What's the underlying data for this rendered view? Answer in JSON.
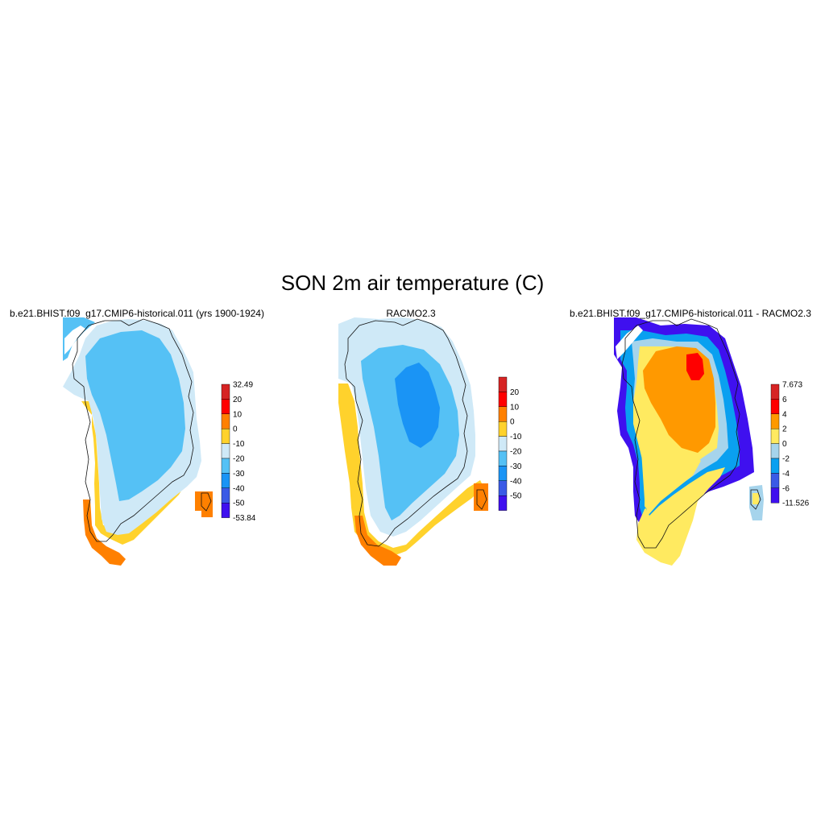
{
  "title": "SON 2m air temperature (C)",
  "panels": [
    {
      "title": "b.e21.BHIST.f09_g17.CMIP6-historical.011 (yrs 1900-1924)",
      "colorbar": {
        "labels": [
          "32.49",
          "20",
          "10",
          "0",
          "-10",
          "-20",
          "-30",
          "-40",
          "-50",
          "-53.84"
        ],
        "colors": [
          "#d62424",
          "#ff0000",
          "#ff8000",
          "#ffd22c",
          "#cfe9f7",
          "#55c1f5",
          "#1a94f5",
          "#3a5ae6",
          "#3f10ef"
        ]
      }
    },
    {
      "title": "RACMO2.3",
      "colorbar": {
        "labels": [
          "20",
          "10",
          "0",
          "-10",
          "-20",
          "-30",
          "-40",
          "-50"
        ],
        "colors": [
          "#d62424",
          "#ff0000",
          "#ff8000",
          "#ffd22c",
          "#cfe9f7",
          "#55c1f5",
          "#1a94f5",
          "#3a5ae6",
          "#3f10ef"
        ]
      }
    },
    {
      "title": "b.e21.BHIST.f09_g17.CMIP6-historical.011 - RACMO2.3",
      "colorbar": {
        "labels": [
          "7.673",
          "6",
          "4",
          "2",
          "0",
          "-2",
          "-4",
          "-6",
          "-11.526"
        ],
        "colors": [
          "#d62424",
          "#ff0000",
          "#ff9900",
          "#ffea60",
          "#a6d4ec",
          "#0aa0f0",
          "#3a5ae6",
          "#3f10ef"
        ]
      }
    }
  ]
}
